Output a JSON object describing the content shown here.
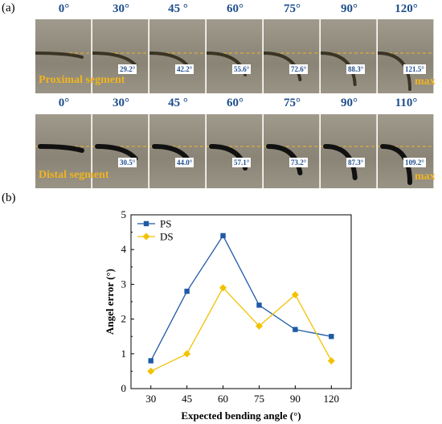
{
  "panel_a": {
    "label": "(a)",
    "proximal": {
      "titles": [
        "0°",
        "30°",
        "45 °",
        "60°",
        "75°",
        "90°",
        "120°"
      ],
      "badges": [
        "",
        "29.2°",
        "42.2°",
        "55.6°",
        "72.6°",
        "88.3°",
        "121.5°"
      ],
      "segment_label": "Proximal segment",
      "max_label": "max"
    },
    "distal": {
      "titles": [
        "0°",
        "30°",
        "45 °",
        "60°",
        "75°",
        "90°",
        "110°"
      ],
      "badges": [
        "",
        "30.5°",
        "44.0°",
        "57.1°",
        "73.2°",
        "87.3°",
        "109.2°"
      ],
      "segment_label": "Distal segment",
      "max_label": "max"
    },
    "colors": {
      "title": "#1f4e8c",
      "segment": "#f0b420",
      "reference_line": "#f0b420"
    }
  },
  "panel_b": {
    "label": "(b)"
  },
  "chart_data": {
    "type": "line",
    "x": [
      30,
      45,
      60,
      75,
      90,
      120
    ],
    "x_tick_labels": [
      "30",
      "45",
      "60",
      "75",
      "90",
      "120"
    ],
    "xlabel": "Expected bending angle (°)",
    "ylabel": "Angel error (°)",
    "ylim": [
      0,
      5
    ],
    "y_ticks": [
      0,
      1,
      2,
      3,
      4,
      5
    ],
    "y_tick_labels": [
      "0",
      "1",
      "2",
      "3",
      "4",
      "5"
    ],
    "grid": false,
    "legend_position": "top-left",
    "series": [
      {
        "name": "PS",
        "marker": "square",
        "color": "#1f5aa6",
        "values": [
          0.8,
          2.8,
          4.4,
          2.4,
          1.7,
          1.5
        ]
      },
      {
        "name": "DS",
        "marker": "diamond",
        "color": "#f2c200",
        "values": [
          0.5,
          1.0,
          2.9,
          1.8,
          2.7,
          0.8
        ]
      }
    ]
  }
}
